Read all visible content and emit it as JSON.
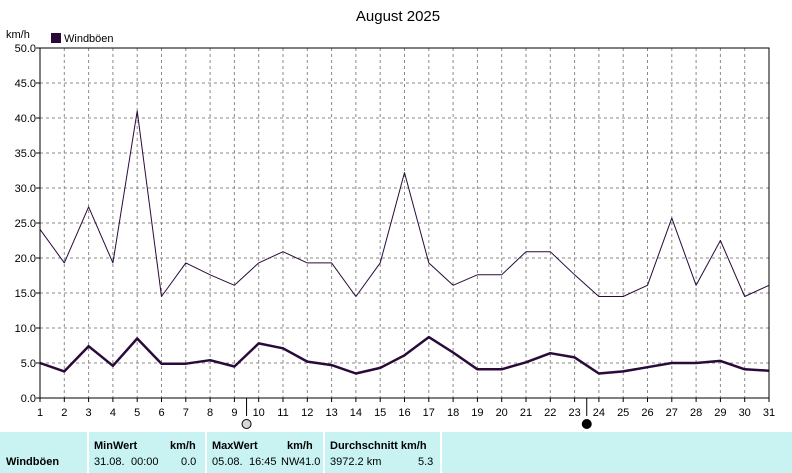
{
  "chart_data": {
    "type": "line",
    "title": "August 2025",
    "ylabel": "km/h",
    "ylim": [
      0,
      50
    ],
    "yticks": [
      "0.0",
      "5.0",
      "10.0",
      "15.0",
      "20.0",
      "25.0",
      "30.0",
      "35.0",
      "40.0",
      "45.0",
      "50.0"
    ],
    "categories": [
      "1",
      "2",
      "3",
      "4",
      "5",
      "6",
      "7",
      "8",
      "9",
      "10",
      "11",
      "12",
      "13",
      "14",
      "15",
      "16",
      "17",
      "18",
      "19",
      "20",
      "21",
      "22",
      "23",
      "24",
      "25",
      "26",
      "27",
      "28",
      "29",
      "30",
      "31"
    ],
    "legend": "top-left",
    "grid": true,
    "series": [
      {
        "name": "Windböen",
        "color": "#2a0a3a",
        "values": [
          24.1,
          19.3,
          27.3,
          19.3,
          41.0,
          14.5,
          19.3,
          17.6,
          16.1,
          19.3,
          20.9,
          19.3,
          19.3,
          14.5,
          19.3,
          32.2,
          19.3,
          16.1,
          17.6,
          17.6,
          20.9,
          20.9,
          17.6,
          14.5,
          14.5,
          16.1,
          25.7,
          16.1,
          22.5,
          14.5,
          16.1
        ]
      },
      {
        "color": "#2a0a3a",
        "values": [
          5.0,
          3.8,
          7.4,
          4.6,
          8.5,
          4.9,
          4.9,
          5.4,
          4.5,
          7.8,
          7.1,
          5.2,
          4.7,
          3.5,
          4.3,
          6.1,
          8.7,
          6.5,
          4.1,
          4.1,
          5.1,
          6.4,
          5.8,
          3.5,
          3.8,
          4.4,
          5.0,
          5.0,
          5.3,
          4.1,
          3.9
        ]
      }
    ],
    "moon_markers": [
      {
        "between": [
          "9",
          "10"
        ],
        "phase": "full-moon-icon"
      },
      {
        "between": [
          "23",
          "24"
        ],
        "phase": "new-moon-icon"
      }
    ]
  },
  "footer": {
    "row_label": "Windböen",
    "min": {
      "title": "MinWert",
      "unit": "km/h",
      "date": "31.08.",
      "time": "00:00",
      "value": "0.0"
    },
    "max": {
      "title": "MaxWert",
      "unit": "km/h",
      "date": "05.08.",
      "time": "16:45",
      "dir": "NW",
      "value": "41.0"
    },
    "avg": {
      "title": "Durchschnitt km/h",
      "distance": "3972.2 km",
      "value": "5.3"
    }
  }
}
